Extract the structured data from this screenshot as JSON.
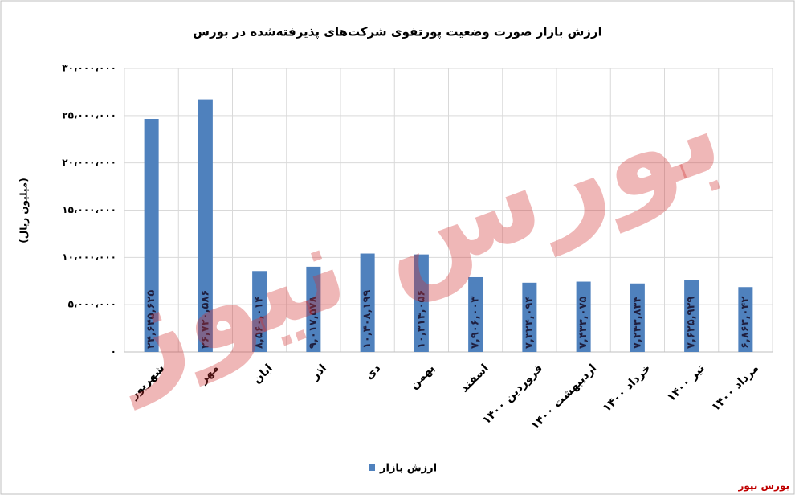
{
  "chart_data": {
    "type": "bar",
    "title": "ارزش بازار صورت وضعیت پورتفوی شرکت‌های پذیرفته‌شده در بورس",
    "y_label": "(میلیون ریال)",
    "categories": [
      "شهریور",
      "مهر",
      "ابان",
      "اذر",
      "دی",
      "بهمن",
      "اسفند",
      "فروردین ۱۴۰۰",
      "اردیبهشت ۱۴۰۰",
      "خرداد ۱۴۰۰",
      "تیر ۱۴۰۰",
      "مرداد ۱۴۰۰"
    ],
    "series": [
      {
        "name": "ارزش بازار",
        "color": "#4f81bd",
        "values": [
          24645625,
          26720586,
          8560014,
          9017578,
          10408199,
          10314056,
          7906003,
          7324094,
          7433075,
          7243834,
          7625929,
          6863042
        ],
        "value_labels": [
          "۲۴,۶۴۵,۶۲۵",
          "۲۶,۷۲۰,۵۸۶",
          "۸,۵۶۰,۰۱۴",
          "۹,۰۱۷,۵۷۸",
          "۱۰,۴۰۸,۱۹۹",
          "۱۰,۳۱۴,۰۵۶",
          "۷,۹۰۶,۰۰۳",
          "۷,۳۲۴,۰۹۴",
          "۷,۴۳۳,۰۷۵",
          "۷,۲۴۳,۸۳۴",
          "۷,۶۲۵,۹۲۹",
          "۶,۸۶۳,۰۴۲"
        ]
      }
    ],
    "ylim": [
      0,
      30000000
    ],
    "yticks": [
      {
        "value": 0,
        "label": "۰"
      },
      {
        "value": 5000000,
        "label": "۵،۰۰۰،۰۰۰"
      },
      {
        "value": 10000000,
        "label": "۱۰،۰۰۰،۰۰۰"
      },
      {
        "value": 15000000,
        "label": "۱۵،۰۰۰،۰۰۰"
      },
      {
        "value": 20000000,
        "label": "۲۰،۰۰۰،۰۰۰"
      },
      {
        "value": 25000000,
        "label": "۲۵،۰۰۰،۰۰۰"
      },
      {
        "value": 30000000,
        "label": "۳۰،۰۰۰،۰۰۰"
      }
    ],
    "grid": true,
    "legend": "bottom",
    "watermark": "بورس نیوز",
    "source": "بورس نیوز"
  }
}
